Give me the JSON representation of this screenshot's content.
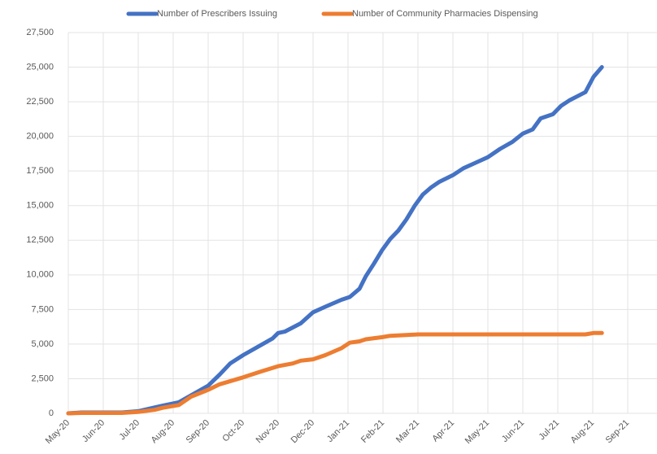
{
  "chart_data": {
    "type": "line",
    "xlim": [
      0,
      16
    ],
    "xticks": [
      {
        "value": 0,
        "label": "May-20"
      },
      {
        "value": 1,
        "label": "Jun-20"
      },
      {
        "value": 2,
        "label": "Jul-20"
      },
      {
        "value": 3,
        "label": "Aug-20"
      },
      {
        "value": 4,
        "label": "Sep-20"
      },
      {
        "value": 5,
        "label": "Oct-20"
      },
      {
        "value": 6,
        "label": "Nov-20"
      },
      {
        "value": 7,
        "label": "Dec-20"
      },
      {
        "value": 8,
        "label": "Jan-21"
      },
      {
        "value": 9,
        "label": "Feb-21"
      },
      {
        "value": 10,
        "label": "Mar-21"
      },
      {
        "value": 11,
        "label": "Apr-21"
      },
      {
        "value": 12,
        "label": "May-21"
      },
      {
        "value": 13,
        "label": "Jun-21"
      },
      {
        "value": 14,
        "label": "Jul-21"
      },
      {
        "value": 15,
        "label": "Aug-21"
      },
      {
        "value": 16,
        "label": "Sep-21"
      }
    ],
    "ylim": [
      0,
      27500
    ],
    "yticks": [
      0,
      {
        "value": 2500,
        "label": "2,500"
      },
      {
        "value": 5000,
        "label": "5,000"
      },
      {
        "value": 7500,
        "label": "7,500"
      },
      {
        "value": 10000,
        "label": "10,000"
      },
      {
        "value": 12500,
        "label": "12,500"
      },
      {
        "value": 15000,
        "label": "15,000"
      },
      {
        "value": 17500,
        "label": "17,500"
      },
      {
        "value": 20000,
        "label": "20,000"
      },
      {
        "value": 22500,
        "label": "22,500"
      },
      {
        "value": 25000,
        "label": "25,000"
      },
      {
        "value": 27500,
        "label": "27,500"
      }
    ],
    "grid": true,
    "legend": "top",
    "series": [
      {
        "name": "Number of Prescribers Issuing",
        "color": "#4472c4",
        "x": [
          0,
          0.37,
          1,
          1.53,
          2,
          2.35,
          2.7,
          3.16,
          3.51,
          4,
          4.33,
          4.63,
          5,
          5.49,
          5.84,
          6,
          6.19,
          6.65,
          7,
          7.35,
          7.81,
          8.05,
          8.33,
          8.51,
          8.74,
          8.98,
          9.21,
          9.44,
          9.67,
          9.91,
          10.14,
          10.37,
          10.6,
          11,
          11.3,
          11.65,
          12,
          12.35,
          12.7,
          13,
          13.28,
          13.51,
          13.86,
          14.09,
          14.33,
          14.56,
          14.79,
          15.02,
          15.26
        ],
        "values": [
          0,
          60,
          60,
          60,
          150,
          350,
          550,
          800,
          1300,
          2000,
          2800,
          3600,
          4200,
          4900,
          5400,
          5800,
          5900,
          6500,
          7300,
          7700,
          8200,
          8400,
          9000,
          9900,
          10800,
          11800,
          12600,
          13200,
          14000,
          15000,
          15800,
          16300,
          16700,
          17200,
          17700,
          18100,
          18500,
          19100,
          19600,
          20200,
          20500,
          21300,
          21600,
          22200,
          22600,
          22900,
          23200,
          24300,
          25000
        ]
      },
      {
        "name": "Number of Community Pharmacies Dispensing",
        "color": "#ed7d31",
        "x": [
          0,
          0.37,
          1.53,
          2,
          2.47,
          2.7,
          3.16,
          3.51,
          4,
          4.33,
          5,
          5.49,
          6,
          6.42,
          6.65,
          7,
          7.35,
          7.81,
          8.05,
          8.33,
          8.51,
          8.98,
          9.21,
          9.67,
          10,
          12,
          14.33,
          14.79,
          15.02,
          15.26
        ],
        "values": [
          0,
          30,
          30,
          100,
          250,
          400,
          600,
          1200,
          1700,
          2100,
          2600,
          3000,
          3400,
          3600,
          3800,
          3900,
          4200,
          4700,
          5100,
          5200,
          5350,
          5500,
          5600,
          5650,
          5700,
          5700,
          5700,
          5700,
          5800,
          5800
        ]
      }
    ]
  }
}
